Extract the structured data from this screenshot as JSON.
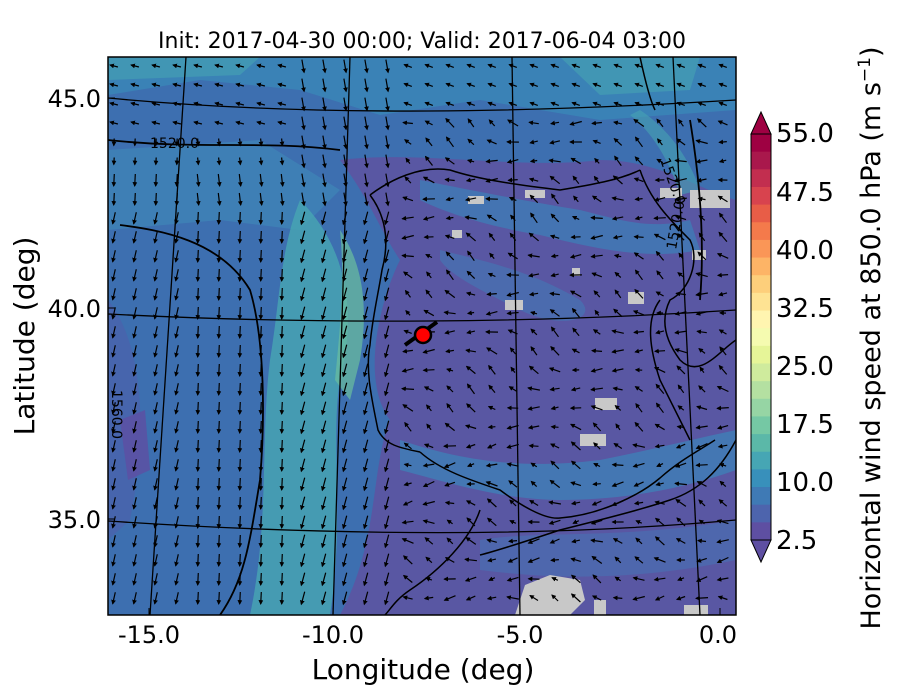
{
  "map": {
    "title": "Init: 2017-04-30 00:00; Valid: 2017-06-04 03:00",
    "xlabel": "Longitude (deg)",
    "ylabel": "Latitude (deg)",
    "x_ticks": [
      "-15.0",
      "-10.0",
      "-5.0",
      "0.0"
    ],
    "y_ticks": [
      "45.0",
      "40.0",
      "35.0"
    ],
    "contour_labels": [
      "1520.0",
      "1520.0",
      "1520.0",
      "1560.0"
    ],
    "marker": {
      "lon": -7.8,
      "lat": 39.3,
      "color": "#ff0000"
    },
    "field": "Horizontal wind speed at 850.0 hPa",
    "missing_color": "#c8c8c8"
  },
  "colorbar": {
    "label_text": "Horizontal wind speed at 850.0 hPa (m s",
    "label_sup": "−1",
    "label_close": ")",
    "ticks": [
      "55.0",
      "47.5",
      "40.0",
      "32.5",
      "25.0",
      "17.5",
      "10.0",
      "2.5"
    ],
    "levels": [
      2.5,
      5,
      7.5,
      10,
      12.5,
      15,
      17.5,
      20,
      22.5,
      25,
      27.5,
      30,
      32.5,
      35,
      37.5,
      40,
      42.5,
      45,
      47.5,
      50,
      52.5,
      55
    ],
    "colors": [
      "#5e4fa2",
      "#4d64ad",
      "#3f7ab5",
      "#3890bb",
      "#46a6b4",
      "#5bb8a8",
      "#75c8a4",
      "#96d5a4",
      "#b4e0a1",
      "#cfeb9d",
      "#e6f598",
      "#f5fbb0",
      "#fff5b0",
      "#fee393",
      "#fdcf7b",
      "#fdb466",
      "#fa9657",
      "#f47a4b",
      "#e85d47",
      "#d8434e",
      "#c22e4f",
      "#a9184c",
      "#9e0142"
    ]
  }
}
